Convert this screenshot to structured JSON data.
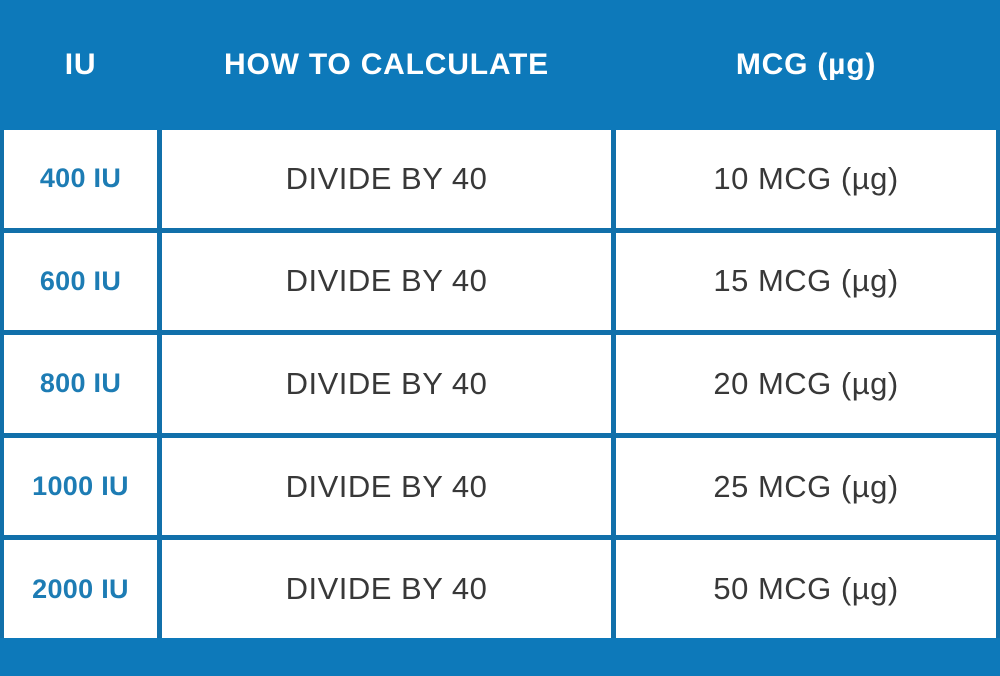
{
  "colors": {
    "background_blue": "#0d79ba",
    "grid_border_blue": "#1170aa",
    "iu_text_blue": "#1d7cb4",
    "body_text_gray": "#383838",
    "header_text_white": "#ffffff",
    "cell_background": "#ffffff"
  },
  "table": {
    "headers": {
      "iu": "IU",
      "calc": "HOW TO CALCULATE",
      "mcg": "MCG (µg)"
    },
    "rows": [
      {
        "iu": "400 IU",
        "calc": "DIVIDE BY 40",
        "mcg": "10 MCG (µg)"
      },
      {
        "iu": "600 IU",
        "calc": "DIVIDE BY 40",
        "mcg": "15 MCG (µg)"
      },
      {
        "iu": "800 IU",
        "calc": "DIVIDE BY 40",
        "mcg": "20 MCG (µg)"
      },
      {
        "iu": "1000 IU",
        "calc": "DIVIDE BY 40",
        "mcg": "25 MCG (µg)"
      },
      {
        "iu": "2000 IU",
        "calc": "DIVIDE BY 40",
        "mcg": "50 MCG (µg)"
      }
    ]
  },
  "chart_data": {
    "type": "table",
    "title": "IU to MCG conversion table",
    "columns": [
      "IU",
      "HOW TO CALCULATE",
      "MCG (µg)"
    ],
    "rows": [
      [
        "400 IU",
        "DIVIDE BY 40",
        "10 MCG (µg)"
      ],
      [
        "600 IU",
        "DIVIDE BY 40",
        "15 MCG (µg)"
      ],
      [
        "800 IU",
        "DIVIDE BY 40",
        "20 MCG (µg)"
      ],
      [
        "1000 IU",
        "DIVIDE BY 40",
        "25 MCG (µg)"
      ],
      [
        "2000 IU",
        "DIVIDE BY 40",
        "50 MCG (µg)"
      ]
    ],
    "iu_values": [
      400,
      600,
      800,
      1000,
      2000
    ],
    "divisor": 40,
    "mcg_values": [
      10,
      15,
      20,
      25,
      50
    ],
    "layout": {
      "header_on_blue": true,
      "grid": true
    }
  }
}
